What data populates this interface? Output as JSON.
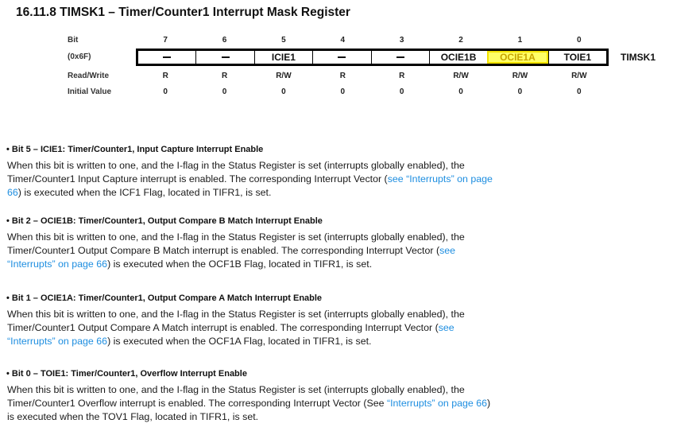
{
  "title": "16.11.8 TIMSK1 – Timer/Counter1 Interrupt Mask Register",
  "table": {
    "bit_label": "Bit",
    "address_label": "(0x6F)",
    "rw_label": "Read/Write",
    "init_label": "Initial Value",
    "register_name": "TIMSK1",
    "bits": [
      "7",
      "6",
      "5",
      "4",
      "3",
      "2",
      "1",
      "0"
    ],
    "fields": [
      "–",
      "–",
      "ICIE1",
      "–",
      "–",
      "OCIE1B",
      "OCIE1A",
      "TOIE1"
    ],
    "read_write": [
      "R",
      "R",
      "R/W",
      "R",
      "R",
      "R/W",
      "R/W",
      "R/W"
    ],
    "initial": [
      "0",
      "0",
      "0",
      "0",
      "0",
      "0",
      "0",
      "0"
    ],
    "highlight_color": "#ffff66"
  },
  "sections": [
    {
      "heading": "•  Bit 5 – ICIE1: Timer/Counter1, Input Capture Interrupt Enable",
      "line1": "When this bit is written to one, and the I-flag in the Status Register is set (interrupts globally enabled), the",
      "line2_pre": "Timer/Counter1 Input Capture interrupt is enabled. The corresponding Interrupt Vector (",
      "line2_link": "see “Interrupts” on page",
      "line3_link": "66",
      "line3_post": ") is executed when the ICF1 Flag, located in TIFR1, is set."
    },
    {
      "heading": "•  Bit 2 – OCIE1B: Timer/Counter1, Output Compare B Match Interrupt Enable",
      "line1": "When this bit is written to one, and the I-flag in the Status Register is set (interrupts globally enabled), the",
      "line2_pre": "Timer/Counter1 Output Compare B Match interrupt is enabled. The corresponding Interrupt Vector (",
      "line2_link": "see",
      "line3_link": "“Interrupts” on page 66",
      "line3_post": ") is executed when the OCF1B Flag, located in TIFR1, is set."
    },
    {
      "heading": "•  Bit 1 – OCIE1A: Timer/Counter1, Output Compare A Match Interrupt Enable",
      "line1": "When this bit is written to one, and the I-flag in the Status Register is set (interrupts globally enabled), the",
      "line2_pre": "Timer/Counter1 Output Compare A Match interrupt is enabled. The corresponding Interrupt Vector (",
      "line2_link": "see",
      "line3_link": "“Interrupts” on page 66",
      "line3_post": ") is executed when the OCF1A Flag, located in TIFR1, is set."
    },
    {
      "heading": "•  Bit 0 – TOIE1: Timer/Counter1, Overflow Interrupt Enable",
      "line1": "When this bit is written to one, and the I-flag in the Status Register is set (interrupts globally enabled), the",
      "line2_pre": "Timer/Counter1 Overflow interrupt is enabled. The corresponding Interrupt Vector (See ",
      "line2_link": "“Interrupts” on page 66",
      "line2_post": ")",
      "line3_post": "is executed when the TOV1 Flag, located in TIFR1, is set."
    }
  ]
}
